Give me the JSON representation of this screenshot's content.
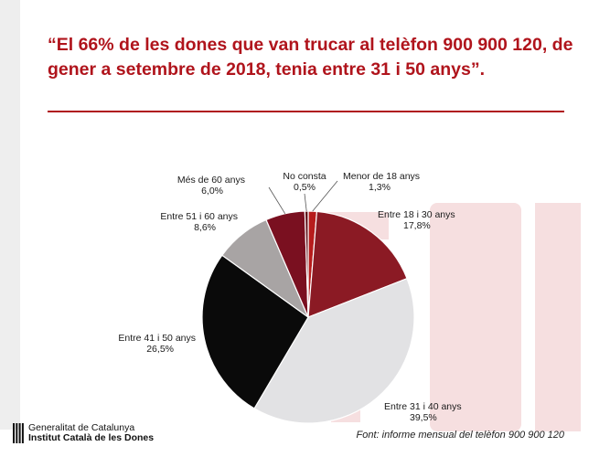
{
  "slide": {
    "title": "“El 66% de les dones que van trucar al telèfon 900 900 120, de gener a setembre de 2018, tenia entre 31 i 50 anys”.",
    "source": "Font: informe mensual del telèfon 900 900 120",
    "org_line1": "Generalitat de Catalunya",
    "org_line2": "Institut Català de les Dones",
    "watermark_color": "#f3d6d7",
    "accent_color": "#b0141c"
  },
  "chart_data": {
    "type": "pie",
    "title": "",
    "unit": "%",
    "start_angle_deg": 0,
    "direction": "clockwise",
    "legend": "none",
    "slices": [
      {
        "label": "Menor de 18 anys",
        "value": 1.3,
        "display": "1,3%",
        "color": "#b71c1c"
      },
      {
        "label": "Entre 18 i 30 anys",
        "value": 17.8,
        "display": "17,8%",
        "color": "#8b1a24"
      },
      {
        "label": "Entre 31 i 40 anys",
        "value": 39.5,
        "display": "39,5%",
        "color": "#e2e2e4"
      },
      {
        "label": "Entre 41 i 50 anys",
        "value": 26.5,
        "display": "26,5%",
        "color": "#0a0a0a"
      },
      {
        "label": "Entre 51 i 60 anys",
        "value": 8.6,
        "display": "8,6%",
        "color": "#a8a4a4"
      },
      {
        "label": "Més de 60 anys",
        "value": 6.0,
        "display": "6,0%",
        "color": "#7a1020"
      },
      {
        "label": "No consta",
        "value": 0.5,
        "display": "0,5%",
        "color": "#5c0c14"
      }
    ]
  }
}
